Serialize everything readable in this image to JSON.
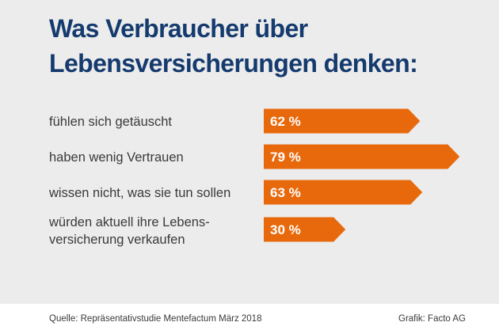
{
  "header": {
    "title_line1": "Was Verbraucher über",
    "title_line2": "Lebensversicherungen denken:"
  },
  "chart_data": {
    "type": "bar",
    "orientation": "horizontal",
    "title": "Was Verbraucher über Lebensversicherungen denken:",
    "xlabel": "",
    "ylabel": "",
    "unit": "%",
    "xlim": [
      0,
      100
    ],
    "grid": false,
    "legend": "none",
    "bar_color": "#e8690c",
    "categories": [
      [
        "fühlen sich getäuscht"
      ],
      [
        "haben wenig Vertrauen"
      ],
      [
        "wissen nicht, was sie tun sollen"
      ],
      [
        "würden aktuell ihre Lebens-",
        "versicherung verkaufen"
      ]
    ],
    "values": [
      62,
      79,
      63,
      30
    ],
    "value_labels": [
      "62 %",
      "79 %",
      "63 %",
      "30 %"
    ]
  },
  "footer": {
    "source": "Quelle: Repräsentativstudie Mentefactum März 2018",
    "credit": "Grafik: Facto AG"
  },
  "colors": {
    "background": "#ececec",
    "title": "#143a6e",
    "bar": "#e8690c",
    "text": "#3a3a3a"
  }
}
